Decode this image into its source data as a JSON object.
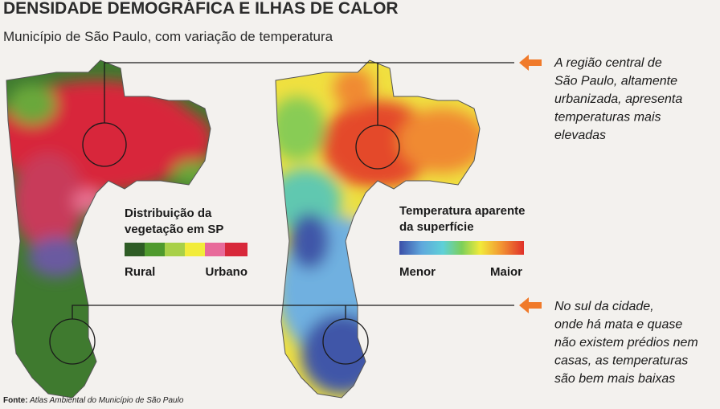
{
  "header": {
    "title": "DENSIDADE DEMOGRÁFICA E ILHAS DE CALOR",
    "subtitle": "Município de São Paulo, com variação de temperatura"
  },
  "legends": [
    {
      "title_lines": [
        "Distribuição da",
        "vegetação em SP"
      ],
      "low": "Rural",
      "high": "Urbano"
    },
    {
      "title_lines": [
        "Temperatura aparente",
        "da superfície"
      ],
      "low": "Menor",
      "high": "Maior"
    }
  ],
  "annotations": [
    {
      "lines": [
        "A região central de",
        "São Paulo, altamente",
        "urbanizada, apresenta",
        "temperaturas mais",
        "elevadas"
      ]
    },
    {
      "lines": [
        "No sul da cidade,",
        "onde há mata e quase",
        "não existem prédios nem",
        "casas, as temperaturas",
        "são bem mais baixas"
      ]
    }
  ],
  "source": {
    "label": "Fonte:",
    "text": "Atlas Ambiental do Município de São Paulo"
  }
}
